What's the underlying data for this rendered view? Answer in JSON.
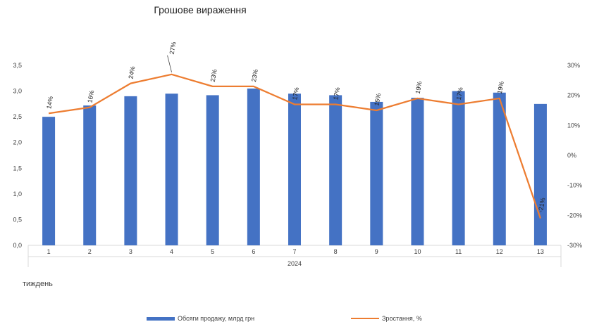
{
  "chart_data": {
    "type": "bar",
    "title": "Грошове вираження",
    "xlabel": "2024",
    "footer_label": "тиждень",
    "categories": [
      "1",
      "2",
      "3",
      "4",
      "5",
      "6",
      "7",
      "8",
      "9",
      "10",
      "11",
      "12",
      "13"
    ],
    "series": [
      {
        "name": "Обсяги продажу, млрд грн",
        "type": "bar",
        "axis": "left",
        "color": "#4472C4",
        "values": [
          2.5,
          2.72,
          2.9,
          2.95,
          2.92,
          3.05,
          2.95,
          2.92,
          2.79,
          2.87,
          3.0,
          2.97,
          2.75
        ]
      },
      {
        "name": "Зростання, %",
        "type": "line",
        "axis": "right",
        "color": "#ED7D31",
        "values": [
          14,
          16,
          24,
          27,
          23,
          23,
          17,
          17,
          15,
          19,
          17,
          19,
          -21
        ],
        "labels": [
          "14%",
          "16%",
          "24%",
          "27%",
          "23%",
          "23%",
          "17%",
          "17%",
          "15%",
          "19%",
          "17%",
          "19%",
          "-21%"
        ]
      }
    ],
    "y_left": {
      "min": 0,
      "max": 3.5,
      "ticks": [
        "0,0",
        "0,5",
        "1,0",
        "1,5",
        "2,0",
        "2,5",
        "3,0",
        "3,5"
      ]
    },
    "y_right": {
      "min": -30,
      "max": 30,
      "ticks": [
        "-30%",
        "-20%",
        "-10%",
        "0%",
        "10%",
        "20%",
        "30%"
      ]
    },
    "grid": false,
    "legend_position": "bottom"
  }
}
